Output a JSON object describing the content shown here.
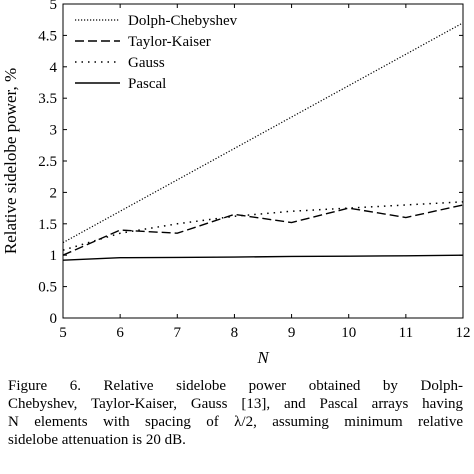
{
  "chart_data": {
    "type": "line",
    "x": [
      5,
      6,
      7,
      8,
      9,
      10,
      11,
      12
    ],
    "series": [
      {
        "name": "Dolph-Chebyshev",
        "style": "dotted-dense",
        "values": [
          1.2,
          1.7,
          2.2,
          2.7,
          3.2,
          3.7,
          4.2,
          4.7
        ]
      },
      {
        "name": "Taylor-Kaiser",
        "style": "dashed",
        "values": [
          1.0,
          1.4,
          1.35,
          1.65,
          1.52,
          1.75,
          1.6,
          1.8
        ]
      },
      {
        "name": "Gauss",
        "style": "dotted-sparse",
        "values": [
          1.08,
          1.35,
          1.5,
          1.62,
          1.7,
          1.75,
          1.8,
          1.85
        ]
      },
      {
        "name": "Pascal",
        "style": "solid",
        "values": [
          0.92,
          0.96,
          0.965,
          0.97,
          0.98,
          0.985,
          0.99,
          1.0
        ]
      }
    ],
    "xlabel": "N",
    "ylabel": "Relative sidelobe power, %",
    "xlim": [
      5,
      12
    ],
    "ylim": [
      0,
      5
    ],
    "xticks": [
      "5",
      "6",
      "7",
      "8",
      "9",
      "10",
      "11",
      "12"
    ],
    "yticks": [
      "0",
      "0.5",
      "1",
      "1.5",
      "2",
      "2.5",
      "3",
      "3.5",
      "4",
      "4.5",
      "5"
    ],
    "grid": false,
    "legend_position": "top-left"
  },
  "caption": {
    "line1": "Figure 6. Relative sidelobe power obtained by Dolph-",
    "line2": "Chebyshev, Taylor-Kaiser, Gauss [13], and Pascal arrays having",
    "line3": "N elements with spacing of λ/2, assuming minimum relative",
    "line4": "sidelobe attenuation is 20 dB."
  },
  "colors": {
    "line": "#000000",
    "background": "#ffffff"
  }
}
